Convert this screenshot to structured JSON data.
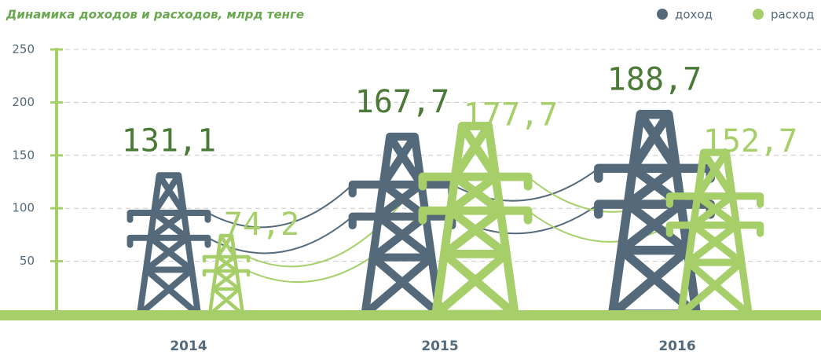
{
  "chart_data": {
    "type": "bar",
    "title": "Динамика доходов и расходов, млрд тенге",
    "categories": [
      "2014",
      "2015",
      "2016"
    ],
    "series": [
      {
        "name": "доход",
        "color": "#546a7b",
        "values": [
          131.1,
          167.7,
          188.7
        ],
        "value_labels": [
          "131,1",
          "167,7",
          "188,7"
        ]
      },
      {
        "name": "расход",
        "color": "#a6cf6a",
        "values": [
          74.2,
          177.7,
          152.7
        ],
        "value_labels": [
          "74,2",
          "177,7",
          "152,7"
        ]
      }
    ],
    "ylim": [
      0,
      250
    ],
    "yticks": [
      50,
      100,
      150,
      200,
      250
    ],
    "grid": true
  }
}
